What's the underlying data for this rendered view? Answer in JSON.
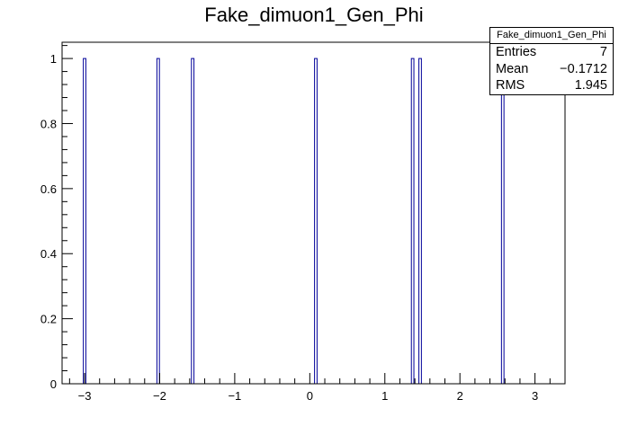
{
  "title": "Fake_dimuon1_Gen_Phi",
  "stats": {
    "name": "Fake_dimuon1_Gen_Phi",
    "rows": [
      {
        "label": "Entries",
        "value": "7"
      },
      {
        "label": "Mean",
        "value": "−0.1712"
      },
      {
        "label": "RMS",
        "value": "1.945"
      }
    ]
  },
  "chart_data": {
    "type": "bar",
    "title": "Fake_dimuon1_Gen_Phi",
    "xlabel": "",
    "ylabel": "",
    "xlim": [
      -3.3,
      3.4
    ],
    "ylim": [
      0,
      1.05
    ],
    "bin_width": 0.0335,
    "x": [
      -3.0,
      -2.02,
      -1.56,
      0.08,
      1.37,
      1.47,
      2.57
    ],
    "values": [
      1,
      1,
      1,
      1,
      1,
      1,
      1
    ],
    "x_ticks": [
      -3,
      -2,
      -1,
      0,
      1,
      2,
      3
    ],
    "x_tick_labels": [
      "−3",
      "−2",
      "−1",
      "0",
      "1",
      "2",
      "3"
    ],
    "y_ticks": [
      0,
      0.2,
      0.4,
      0.6,
      0.8,
      1
    ],
    "y_tick_labels": [
      "0",
      "0.2",
      "0.4",
      "0.6",
      "0.8",
      "1"
    ],
    "line_color": "#000099",
    "grid": false
  }
}
